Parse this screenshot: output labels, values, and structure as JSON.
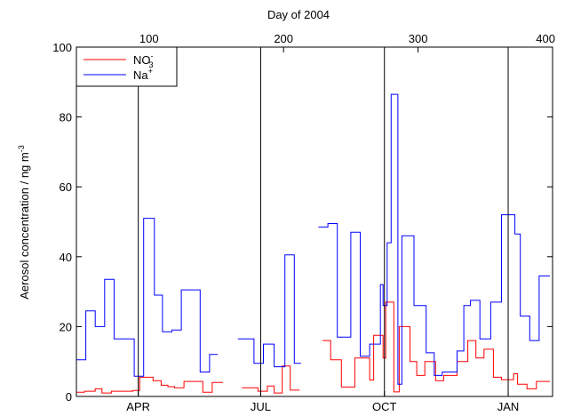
{
  "chart_data": {
    "type": "line",
    "title": "",
    "top_axis_label": "Day of 2004",
    "ylabel": "Aerosol concentration / ng m",
    "ylabel_superscript": "-3",
    "ylim": [
      0,
      100
    ],
    "yticks": [
      0,
      20,
      40,
      60,
      80,
      100
    ],
    "top_xlim": [
      46,
      400
    ],
    "top_xticks": [
      100,
      200,
      300,
      400
    ],
    "month_ticks": [
      {
        "label": "APR",
        "day": 92
      },
      {
        "label": "JUL",
        "day": 183
      },
      {
        "label": "OCT",
        "day": 275
      },
      {
        "label": "JAN",
        "day": 367
      }
    ],
    "vertical_lines_day": [
      92,
      183,
      275,
      367
    ],
    "grid": false,
    "legend": {
      "placement": "top-left",
      "entries": [
        {
          "base": "NO",
          "sup": "-",
          "sub": "3",
          "color": "#ff0000"
        },
        {
          "base": "Na",
          "sup": "+",
          "sub": "",
          "color": "#0000ff"
        }
      ]
    },
    "series": [
      {
        "name": "NO3-",
        "color": "#ff0000",
        "segments": [
          [
            [
              46,
              1.2
            ],
            [
              52,
              1.5
            ],
            [
              60,
              2.2
            ],
            [
              65,
              1.0
            ],
            [
              72,
              1.5
            ],
            [
              88,
              1.7
            ],
            [
              93,
              5.5
            ],
            [
              103,
              4.5
            ],
            [
              109,
              3.2
            ],
            [
              114,
              2.8
            ],
            [
              119,
              2.5
            ],
            [
              126,
              4.3
            ],
            [
              140,
              1.2
            ],
            [
              147,
              4.0
            ],
            [
              155,
              4.0
            ]
          ],
          [
            [
              169,
              2.5
            ],
            [
              181,
              1.5
            ],
            [
              188,
              3.0
            ],
            [
              193,
              1.0
            ],
            [
              199,
              8.7
            ],
            [
              205,
              1.8
            ],
            [
              212,
              1.8
            ]
          ],
          [
            [
              229,
              16
            ],
            [
              235,
              10.5
            ],
            [
              243,
              2.7
            ],
            [
              253,
              11
            ],
            [
              264,
              4.7
            ],
            [
              267,
              17.5
            ],
            [
              274,
              11
            ],
            [
              276,
              27
            ],
            [
              282,
              1.3
            ],
            [
              286,
              20
            ],
            [
              294,
              10
            ],
            [
              299,
              6
            ],
            [
              305,
              10
            ],
            [
              313,
              4.5
            ],
            [
              319,
              6
            ],
            [
              329,
              10
            ],
            [
              337,
              16
            ],
            [
              343,
              11
            ],
            [
              349,
              13.5
            ],
            [
              356,
              5.5
            ],
            [
              362,
              4.8
            ],
            [
              371,
              6.5
            ],
            [
              374,
              3.5
            ],
            [
              381,
              2.2
            ],
            [
              388,
              4.3
            ],
            [
              398,
              4.3
            ]
          ]
        ]
      },
      {
        "name": "Na+",
        "color": "#0000ff",
        "segments": [
          [
            [
              46,
              10.5
            ],
            [
              53,
              24.5
            ],
            [
              60,
              20
            ],
            [
              67,
              33.5
            ],
            [
              74,
              16.5
            ],
            [
              89,
              5.8
            ],
            [
              96,
              51
            ],
            [
              104,
              29
            ],
            [
              110,
              18.5
            ],
            [
              117,
              19
            ],
            [
              124,
              30.5
            ],
            [
              138,
              7
            ],
            [
              145,
              12
            ],
            [
              151,
              12
            ]
          ],
          [
            [
              166,
              16.5
            ],
            [
              178,
              9.5
            ],
            [
              185,
              15
            ],
            [
              193,
              8.5
            ],
            [
              201,
              40.5
            ],
            [
              208,
              9.5
            ],
            [
              213,
              9.5
            ]
          ],
          [
            [
              226,
              48.5
            ],
            [
              233,
              49.5
            ],
            [
              240,
              17
            ],
            [
              250,
              47
            ],
            [
              257,
              11.5
            ],
            [
              264,
              15
            ],
            [
              272,
              32
            ],
            [
              274,
              26
            ],
            [
              277,
              44
            ],
            [
              280,
              86.5
            ],
            [
              285,
              3.5
            ],
            [
              288,
              46
            ],
            [
              297,
              26
            ],
            [
              306,
              12.5
            ],
            [
              312,
              6
            ],
            [
              318,
              7
            ],
            [
              329,
              13
            ],
            [
              334,
              26
            ],
            [
              339,
              27.5
            ],
            [
              346,
              16.5
            ],
            [
              354,
              27
            ],
            [
              362,
              52
            ],
            [
              372,
              46.5
            ],
            [
              376,
              23
            ],
            [
              383,
              16
            ],
            [
              390,
              34.5
            ],
            [
              398,
              34.5
            ]
          ]
        ]
      }
    ]
  }
}
